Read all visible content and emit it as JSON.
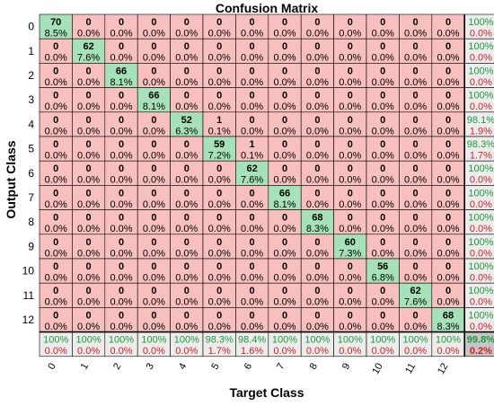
{
  "chart_data": {
    "type": "heatmap",
    "title": "Confusion Matrix",
    "xlabel": "Target Class",
    "ylabel": "Output Class",
    "x_ticks": [
      "0",
      "1",
      "2",
      "3",
      "4",
      "5",
      "6",
      "7",
      "8",
      "9",
      "10",
      "11",
      "12"
    ],
    "y_ticks": [
      "0",
      "1",
      "2",
      "3",
      "4",
      "5",
      "6",
      "7",
      "8",
      "9",
      "10",
      "11",
      "12"
    ],
    "counts": [
      [
        70,
        0,
        0,
        0,
        0,
        0,
        0,
        0,
        0,
        0,
        0,
        0,
        0
      ],
      [
        0,
        62,
        0,
        0,
        0,
        0,
        0,
        0,
        0,
        0,
        0,
        0,
        0
      ],
      [
        0,
        0,
        66,
        0,
        0,
        0,
        0,
        0,
        0,
        0,
        0,
        0,
        0
      ],
      [
        0,
        0,
        0,
        66,
        0,
        0,
        0,
        0,
        0,
        0,
        0,
        0,
        0
      ],
      [
        0,
        0,
        0,
        0,
        52,
        1,
        0,
        0,
        0,
        0,
        0,
        0,
        0
      ],
      [
        0,
        0,
        0,
        0,
        0,
        59,
        1,
        0,
        0,
        0,
        0,
        0,
        0
      ],
      [
        0,
        0,
        0,
        0,
        0,
        0,
        62,
        0,
        0,
        0,
        0,
        0,
        0
      ],
      [
        0,
        0,
        0,
        0,
        0,
        0,
        0,
        66,
        0,
        0,
        0,
        0,
        0
      ],
      [
        0,
        0,
        0,
        0,
        0,
        0,
        0,
        0,
        68,
        0,
        0,
        0,
        0
      ],
      [
        0,
        0,
        0,
        0,
        0,
        0,
        0,
        0,
        0,
        60,
        0,
        0,
        0
      ],
      [
        0,
        0,
        0,
        0,
        0,
        0,
        0,
        0,
        0,
        0,
        56,
        0,
        0
      ],
      [
        0,
        0,
        0,
        0,
        0,
        0,
        0,
        0,
        0,
        0,
        0,
        62,
        0
      ],
      [
        0,
        0,
        0,
        0,
        0,
        0,
        0,
        0,
        0,
        0,
        0,
        0,
        68
      ]
    ],
    "percents": [
      [
        "8.5%",
        "0.0%",
        "0.0%",
        "0.0%",
        "0.0%",
        "0.0%",
        "0.0%",
        "0.0%",
        "0.0%",
        "0.0%",
        "0.0%",
        "0.0%",
        "0.0%"
      ],
      [
        "0.0%",
        "7.6%",
        "0.0%",
        "0.0%",
        "0.0%",
        "0.0%",
        "0.0%",
        "0.0%",
        "0.0%",
        "0.0%",
        "0.0%",
        "0.0%",
        "0.0%"
      ],
      [
        "0.0%",
        "0.0%",
        "8.1%",
        "0.0%",
        "0.0%",
        "0.0%",
        "0.0%",
        "0.0%",
        "0.0%",
        "0.0%",
        "0.0%",
        "0.0%",
        "0.0%"
      ],
      [
        "0.0%",
        "0.0%",
        "0.0%",
        "8.1%",
        "0.0%",
        "0.0%",
        "0.0%",
        "0.0%",
        "0.0%",
        "0.0%",
        "0.0%",
        "0.0%",
        "0.0%"
      ],
      [
        "0.0%",
        "0.0%",
        "0.0%",
        "0.0%",
        "6.3%",
        "0.1%",
        "0.0%",
        "0.0%",
        "0.0%",
        "0.0%",
        "0.0%",
        "0.0%",
        "0.0%"
      ],
      [
        "0.0%",
        "0.0%",
        "0.0%",
        "0.0%",
        "0.0%",
        "7.2%",
        "0.1%",
        "0.0%",
        "0.0%",
        "0.0%",
        "0.0%",
        "0.0%",
        "0.0%"
      ],
      [
        "0.0%",
        "0.0%",
        "0.0%",
        "0.0%",
        "0.0%",
        "0.0%",
        "7.6%",
        "0.0%",
        "0.0%",
        "0.0%",
        "0.0%",
        "0.0%",
        "0.0%"
      ],
      [
        "0.0%",
        "0.0%",
        "0.0%",
        "0.0%",
        "0.0%",
        "0.0%",
        "0.0%",
        "8.1%",
        "0.0%",
        "0.0%",
        "0.0%",
        "0.0%",
        "0.0%"
      ],
      [
        "0.0%",
        "0.0%",
        "0.0%",
        "0.0%",
        "0.0%",
        "0.0%",
        "0.0%",
        "0.0%",
        "8.3%",
        "0.0%",
        "0.0%",
        "0.0%",
        "0.0%"
      ],
      [
        "0.0%",
        "0.0%",
        "0.0%",
        "0.0%",
        "0.0%",
        "0.0%",
        "0.0%",
        "0.0%",
        "0.0%",
        "7.3%",
        "0.0%",
        "0.0%",
        "0.0%"
      ],
      [
        "0.0%",
        "0.0%",
        "0.0%",
        "0.0%",
        "0.0%",
        "0.0%",
        "0.0%",
        "0.0%",
        "0.0%",
        "0.0%",
        "6.8%",
        "0.0%",
        "0.0%"
      ],
      [
        "0.0%",
        "0.0%",
        "0.0%",
        "0.0%",
        "0.0%",
        "0.0%",
        "0.0%",
        "0.0%",
        "0.0%",
        "0.0%",
        "0.0%",
        "7.6%",
        "0.0%"
      ],
      [
        "0.0%",
        "0.0%",
        "0.0%",
        "0.0%",
        "0.0%",
        "0.0%",
        "0.0%",
        "0.0%",
        "0.0%",
        "0.0%",
        "0.0%",
        "0.0%",
        "8.3%"
      ]
    ],
    "row_summary": [
      [
        "100%",
        "0.0%"
      ],
      [
        "100%",
        "0.0%"
      ],
      [
        "100%",
        "0.0%"
      ],
      [
        "100%",
        "0.0%"
      ],
      [
        "98.1%",
        "1.9%"
      ],
      [
        "98.3%",
        "1.7%"
      ],
      [
        "100%",
        "0.0%"
      ],
      [
        "100%",
        "0.0%"
      ],
      [
        "100%",
        "0.0%"
      ],
      [
        "100%",
        "0.0%"
      ],
      [
        "100%",
        "0.0%"
      ],
      [
        "100%",
        "0.0%"
      ],
      [
        "100%",
        "0.0%"
      ]
    ],
    "col_summary": [
      [
        "100%",
        "0.0%"
      ],
      [
        "100%",
        "0.0%"
      ],
      [
        "100%",
        "0.0%"
      ],
      [
        "100%",
        "0.0%"
      ],
      [
        "100%",
        "0.0%"
      ],
      [
        "98.3%",
        "1.7%"
      ],
      [
        "98.4%",
        "1.6%"
      ],
      [
        "100%",
        "0.0%"
      ],
      [
        "100%",
        "0.0%"
      ],
      [
        "100%",
        "0.0%"
      ],
      [
        "100%",
        "0.0%"
      ],
      [
        "100%",
        "0.0%"
      ],
      [
        "100%",
        "0.0%"
      ]
    ],
    "overall": [
      "99.8%",
      "0.2%"
    ],
    "grid": true
  },
  "colors": {
    "diagonal": "#a6e2b9",
    "off_diagonal": "#f7c0bf",
    "summary": "#ececec",
    "corner": "#c6c6c6",
    "correct_text": "#1a9a3a",
    "error_text": "#d42020",
    "text": "#000000"
  }
}
